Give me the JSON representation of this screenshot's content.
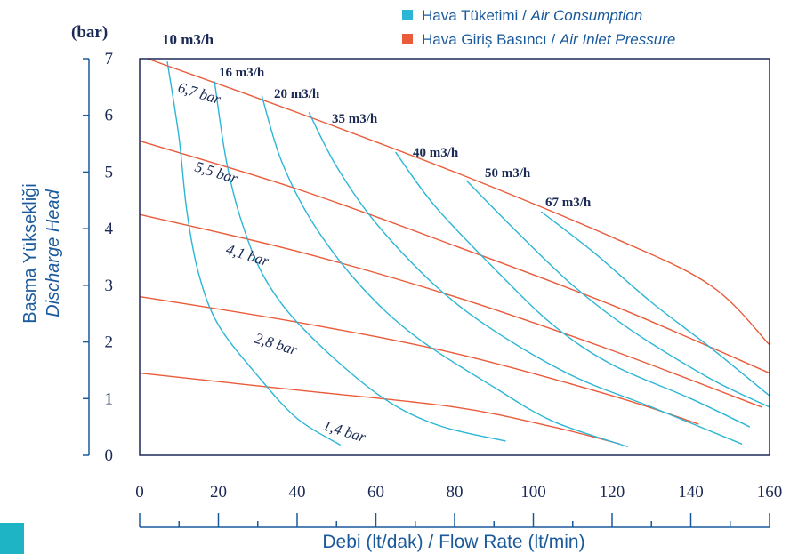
{
  "chart_data": {
    "type": "line",
    "yunit": "(bar)",
    "ylabel": "Basma Yüksekliği",
    "ylabel_en": "Discharge Head",
    "xlabel": "Debi (lt/dak) / Flow Rate (lt/min)",
    "xlim": [
      0,
      160
    ],
    "ylim": [
      0,
      7
    ],
    "xticks": [
      0,
      20,
      40,
      60,
      80,
      100,
      120,
      140,
      160
    ],
    "yticks": [
      0,
      1,
      2,
      3,
      4,
      5,
      6,
      7
    ],
    "legend": [
      {
        "tr": "Hava Tüketimi / ",
        "en": "Air Consumption",
        "color": "#2bb6d6"
      },
      {
        "tr": "Hava Giriş Basıncı / ",
        "en": "Air Inlet Pressure",
        "color": "#ea5b3a"
      }
    ],
    "colors": {
      "axis": "#1a5a9c",
      "frame": "#1b2a55",
      "consumption": "#2bb6d6",
      "pressure": "#ea5b3a"
    },
    "air_inlet_pressure": [
      {
        "label": "6,7 bar",
        "points": [
          [
            2,
            7.0
          ],
          [
            40,
            6.05
          ],
          [
            80,
            5.0
          ],
          [
            120,
            3.85
          ],
          [
            145,
            3.0
          ],
          [
            160,
            1.95
          ]
        ]
      },
      {
        "label": "5,5 bar",
        "points": [
          [
            0,
            5.55
          ],
          [
            40,
            4.7
          ],
          [
            80,
            3.7
          ],
          [
            120,
            2.65
          ],
          [
            160,
            1.45
          ]
        ]
      },
      {
        "label": "4,1 bar",
        "points": [
          [
            0,
            4.25
          ],
          [
            40,
            3.6
          ],
          [
            80,
            2.8
          ],
          [
            120,
            1.85
          ],
          [
            158,
            0.85
          ]
        ]
      },
      {
        "label": "2,8 bar",
        "points": [
          [
            0,
            2.8
          ],
          [
            40,
            2.35
          ],
          [
            80,
            1.8
          ],
          [
            120,
            1.05
          ],
          [
            142,
            0.55
          ]
        ]
      },
      {
        "label": "1,4 bar",
        "points": [
          [
            0,
            1.45
          ],
          [
            40,
            1.15
          ],
          [
            80,
            0.85
          ],
          [
            105,
            0.5
          ],
          [
            122,
            0.2
          ]
        ]
      }
    ],
    "air_consumption": [
      {
        "label": "10 m3/h",
        "points": [
          [
            7,
            6.95
          ],
          [
            10,
            5.6
          ],
          [
            12,
            4.3
          ],
          [
            15,
            3.2
          ],
          [
            20,
            2.3
          ],
          [
            30,
            1.4
          ],
          [
            40,
            0.65
          ],
          [
            51,
            0.18
          ]
        ]
      },
      {
        "label": "16 m3/h",
        "points": [
          [
            19,
            6.6
          ],
          [
            22,
            5.2
          ],
          [
            26,
            4.1
          ],
          [
            32,
            3.1
          ],
          [
            42,
            2.2
          ],
          [
            60,
            1.1
          ],
          [
            75,
            0.55
          ],
          [
            93,
            0.25
          ]
        ]
      },
      {
        "label": "20 m3/h",
        "points": [
          [
            31,
            6.35
          ],
          [
            36,
            5.2
          ],
          [
            44,
            4.1
          ],
          [
            56,
            3.0
          ],
          [
            70,
            2.1
          ],
          [
            90,
            1.2
          ],
          [
            105,
            0.6
          ],
          [
            124,
            0.15
          ]
        ]
      },
      {
        "label": "35 m3/h",
        "points": [
          [
            43,
            6.05
          ],
          [
            50,
            5.1
          ],
          [
            60,
            4.1
          ],
          [
            75,
            3.0
          ],
          [
            90,
            2.2
          ],
          [
            110,
            1.4
          ],
          [
            130,
            0.85
          ],
          [
            153,
            0.2
          ]
        ]
      },
      {
        "label": "40 m3/h",
        "points": [
          [
            65,
            5.35
          ],
          [
            75,
            4.4
          ],
          [
            90,
            3.3
          ],
          [
            105,
            2.3
          ],
          [
            120,
            1.6
          ],
          [
            140,
            1.0
          ],
          [
            155,
            0.5
          ]
        ]
      },
      {
        "label": "50 m3/h",
        "points": [
          [
            83,
            4.85
          ],
          [
            95,
            4.0
          ],
          [
            110,
            3.0
          ],
          [
            125,
            2.2
          ],
          [
            145,
            1.35
          ],
          [
            160,
            0.85
          ]
        ]
      },
      {
        "label": "67 m3/h",
        "points": [
          [
            102,
            4.3
          ],
          [
            115,
            3.6
          ],
          [
            130,
            2.7
          ],
          [
            145,
            1.9
          ],
          [
            160,
            1.05
          ]
        ]
      }
    ]
  }
}
